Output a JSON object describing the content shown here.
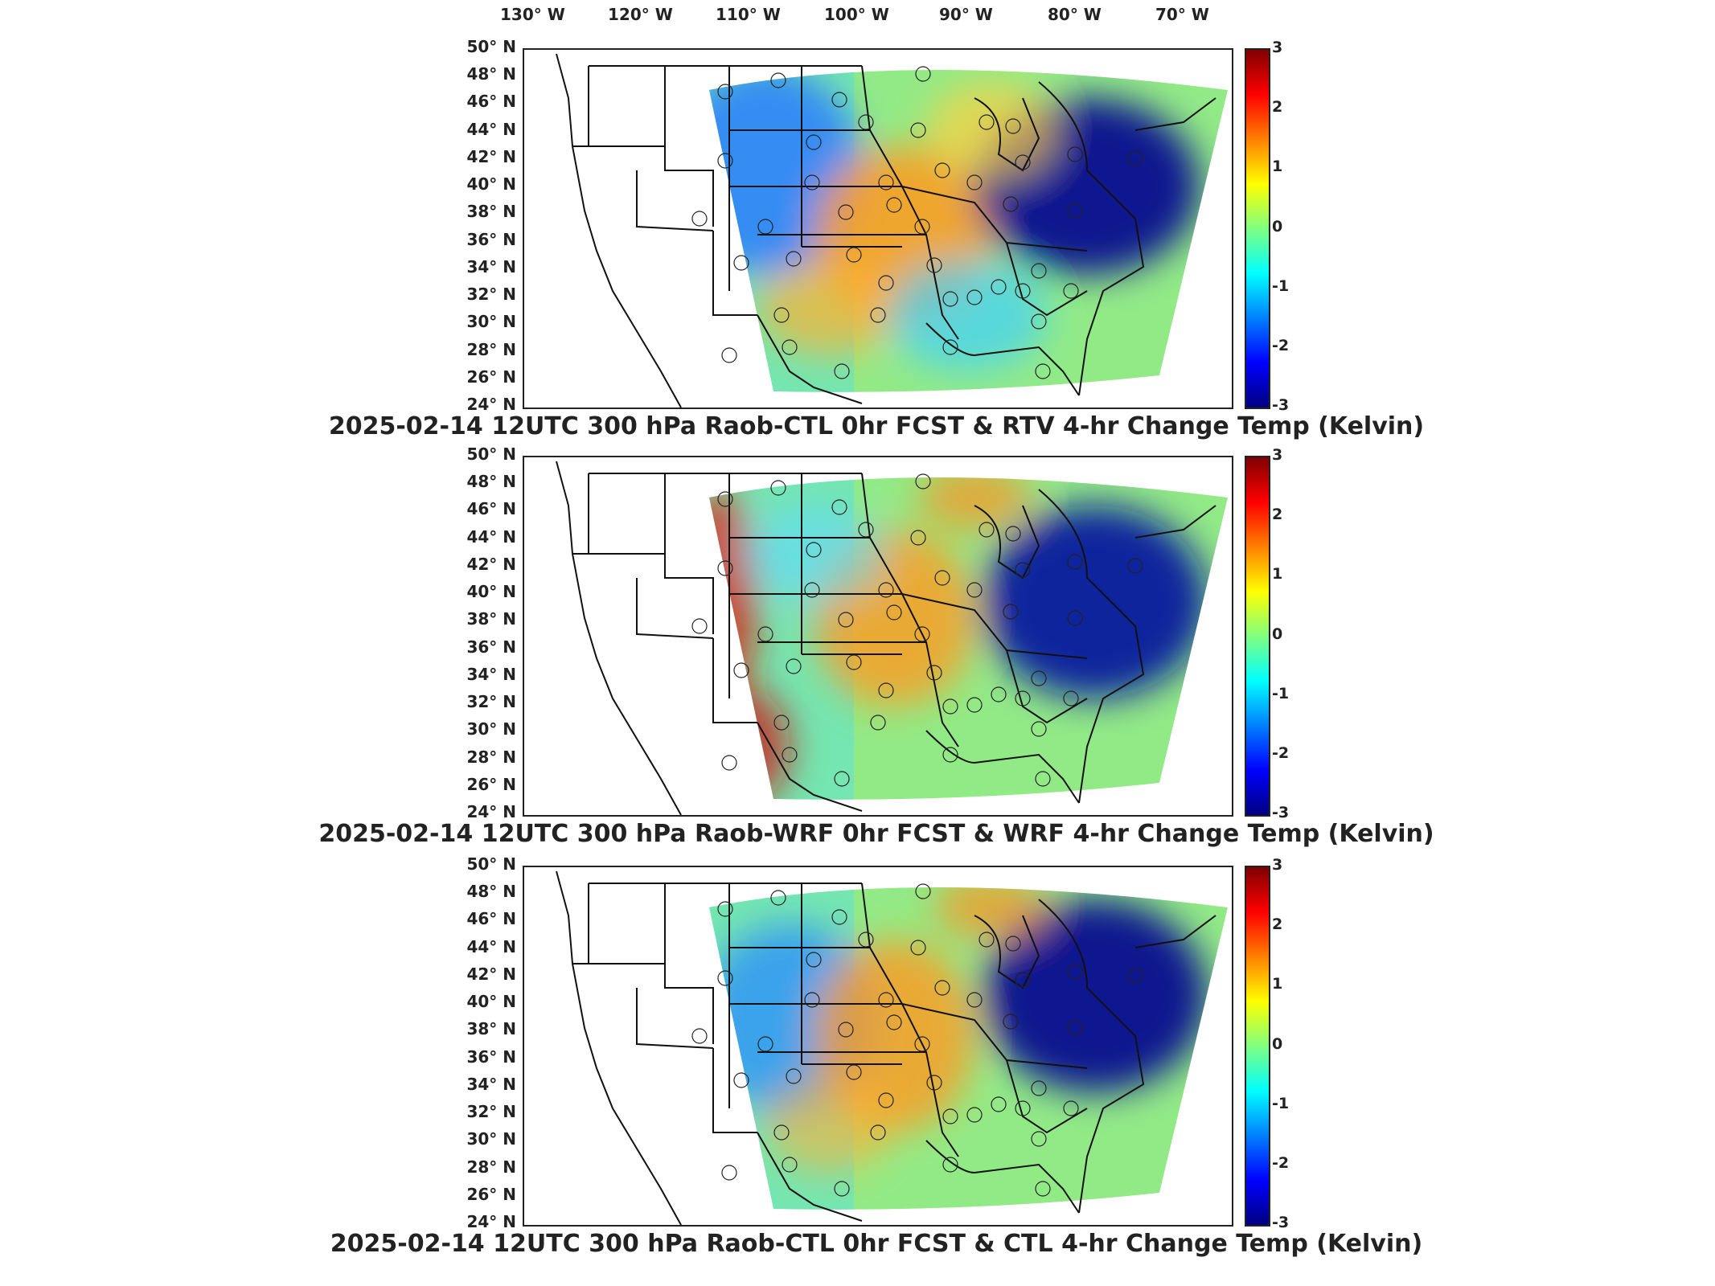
{
  "lon_labels": [
    "130° W",
    "120° W",
    "110° W",
    "100° W",
    "90° W",
    "80° W",
    "70° W"
  ],
  "lat_labels": [
    "50° N",
    "48° N",
    "46° N",
    "44° N",
    "42° N",
    "40° N",
    "38° N",
    "36° N",
    "34° N",
    "32° N",
    "30° N",
    "28° N",
    "26° N",
    "24° N"
  ],
  "colorbar": {
    "ticks": [
      "3",
      "2",
      "1",
      "0",
      "-1",
      "-2",
      "-3"
    ],
    "colors": [
      "#800000",
      "#ff0000",
      "#ff8000",
      "#ffff00",
      "#80ff80",
      "#00ffff",
      "#0080ff",
      "#0000ff",
      "#000080"
    ],
    "range": [
      -3,
      3
    ]
  },
  "panels": [
    {
      "title": "2025-02-14 12UTC 300 hPa Raob-CTL 0hr FCST & RTV 4-hr Change Temp (Kelvin)"
    },
    {
      "title": "2025-02-14 12UTC 300 hPa Raob-WRF 0hr FCST & WRF 4-hr Change Temp (Kelvin)"
    },
    {
      "title": "2025-02-14 12UTC 300 hPa Raob-CTL 0hr FCST & CTL 4-hr Change Temp (Kelvin)"
    }
  ]
}
